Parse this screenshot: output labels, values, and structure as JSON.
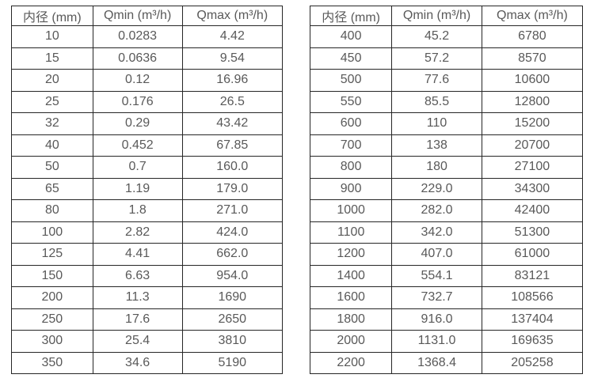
{
  "page": {
    "background": "#ffffff",
    "text_color": "#595959",
    "border_color": "#262626"
  },
  "chart_data": [
    {
      "type": "table",
      "title": "",
      "columns": [
        "内径 (mm)",
        "Qmin (m³/h)",
        "Qmax (m³/h)"
      ],
      "rows": [
        [
          "10",
          "0.0283",
          "4.42"
        ],
        [
          "15",
          "0.0636",
          "9.54"
        ],
        [
          "20",
          "0.12",
          "16.96"
        ],
        [
          "25",
          "0.176",
          "26.5"
        ],
        [
          "32",
          "0.29",
          "43.42"
        ],
        [
          "40",
          "0.452",
          "67.85"
        ],
        [
          "50",
          "0.7",
          "160.0"
        ],
        [
          "65",
          "1.19",
          "179.0"
        ],
        [
          "80",
          "1.8",
          "271.0"
        ],
        [
          "100",
          "2.82",
          "424.0"
        ],
        [
          "125",
          "4.41",
          "662.0"
        ],
        [
          "150",
          "6.63",
          "954.0"
        ],
        [
          "200",
          "11.3",
          "1690"
        ],
        [
          "250",
          "17.6",
          "2650"
        ],
        [
          "300",
          "25.4",
          "3810"
        ],
        [
          "350",
          "34.6",
          "5190"
        ]
      ]
    },
    {
      "type": "table",
      "title": "",
      "columns": [
        "内径 (mm)",
        "Qmin (m³/h)",
        "Qmax (m³/h)"
      ],
      "rows": [
        [
          "400",
          "45.2",
          "6780"
        ],
        [
          "450",
          "57.2",
          "8570"
        ],
        [
          "500",
          "77.6",
          "10600"
        ],
        [
          "550",
          "85.5",
          "12800"
        ],
        [
          "600",
          "110",
          "15200"
        ],
        [
          "700",
          "138",
          "20700"
        ],
        [
          "800",
          "180",
          "27100"
        ],
        [
          "900",
          "229.0",
          "34300"
        ],
        [
          "1000",
          "282.0",
          "42400"
        ],
        [
          "1100",
          "342.0",
          "51300"
        ],
        [
          "1200",
          "407.0",
          "61000"
        ],
        [
          "1400",
          "554.1",
          "83121"
        ],
        [
          "1600",
          "732.7",
          "108566"
        ],
        [
          "1800",
          "916.0",
          "137404"
        ],
        [
          "2000",
          "1131.0",
          "169635"
        ],
        [
          "2200",
          "1368.4",
          "205258"
        ]
      ]
    }
  ]
}
